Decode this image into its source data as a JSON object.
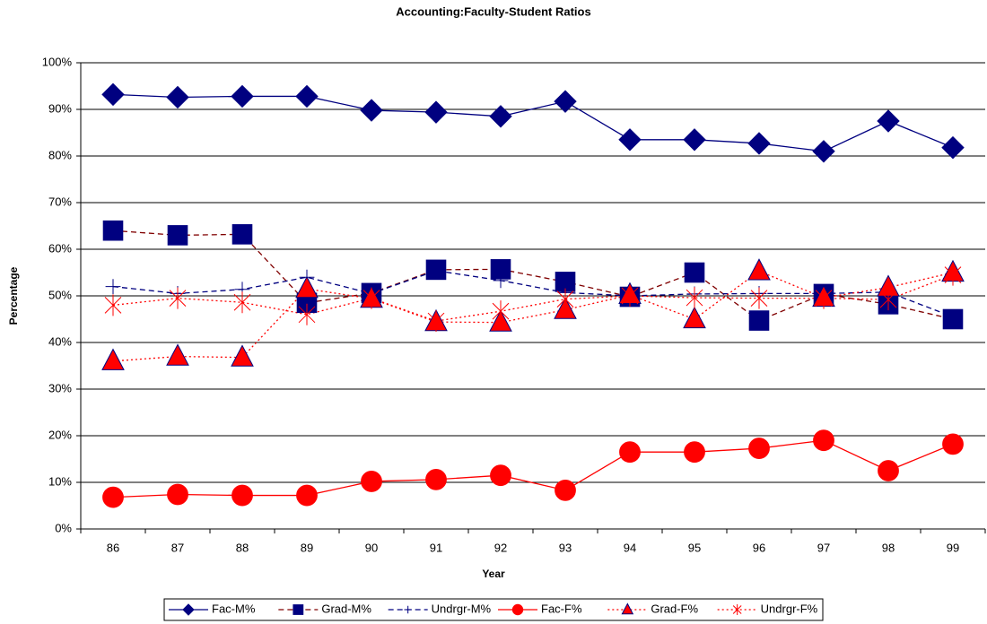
{
  "chart_data": {
    "type": "line",
    "title": "Accounting:Faculty-Student Ratios",
    "x_label": "Year",
    "y_label": "Percentage",
    "categories": [
      "86",
      "87",
      "88",
      "89",
      "90",
      "91",
      "92",
      "93",
      "94",
      "95",
      "96",
      "97",
      "98",
      "99"
    ],
    "ylim": [
      0,
      100
    ],
    "yticks": [
      {
        "value": 0,
        "label": "0%"
      },
      {
        "value": 10,
        "label": "10%"
      },
      {
        "value": 20,
        "label": "20%"
      },
      {
        "value": 30,
        "label": "30%"
      },
      {
        "value": 40,
        "label": "40%"
      },
      {
        "value": 50,
        "label": "50%"
      },
      {
        "value": 60,
        "label": "60%"
      },
      {
        "value": 70,
        "label": "70%"
      },
      {
        "value": 80,
        "label": "80%"
      },
      {
        "value": 90,
        "label": "90%"
      },
      {
        "value": 100,
        "label": "100%"
      }
    ],
    "grid": true,
    "legend": "bottom",
    "series": [
      {
        "name": "Fac-M%",
        "color": "#000080",
        "line_color": "#000080",
        "marker": "diamond",
        "dash": "solid",
        "values": [
          93.2,
          92.6,
          92.8,
          92.8,
          89.8,
          89.4,
          88.5,
          91.7,
          83.5,
          83.5,
          82.7,
          81,
          87.5,
          81.8
        ]
      },
      {
        "name": "Grad-M%",
        "color": "#000080",
        "line_color": "#800000",
        "marker": "square",
        "dash": "dashed",
        "values": [
          64,
          63,
          63.2,
          48.5,
          50.6,
          55.6,
          55.7,
          53,
          49.8,
          55,
          44.7,
          50.4,
          48.2,
          45
        ]
      },
      {
        "name": "Undrgr-M%",
        "color": "#000080",
        "line_color": "#000080",
        "marker": "plus",
        "dash": "dashed",
        "values": [
          52,
          50.5,
          51.4,
          54,
          50.5,
          55.4,
          53.3,
          50.7,
          50,
          50.4,
          50.5,
          50.5,
          50.8,
          45.5
        ]
      },
      {
        "name": "Fac-F%",
        "color": "#ff0000",
        "line_color": "#ff0000",
        "marker": "circle",
        "dash": "solid",
        "values": [
          6.8,
          7.4,
          7.2,
          7.2,
          10.2,
          10.6,
          11.5,
          8.3,
          16.5,
          16.5,
          17.3,
          19,
          12.5,
          18.2
        ]
      },
      {
        "name": "Grad-F%",
        "color": "#ff0000",
        "line_color": "#ff0000",
        "marker": "triangle",
        "dash": "dotted",
        "values": [
          36,
          37,
          36.8,
          51.5,
          49.4,
          44.4,
          44.3,
          47,
          50.2,
          45,
          55.3,
          49.6,
          51.8,
          55
        ]
      },
      {
        "name": "Undrgr-F%",
        "color": "#ff0000",
        "line_color": "#ff0000",
        "marker": "asterisk",
        "dash": "dotted",
        "values": [
          48,
          49.5,
          48.6,
          46,
          49.5,
          44.6,
          46.7,
          49.3,
          50,
          49.6,
          49.5,
          49.5,
          49.2,
          54.5
        ]
      }
    ]
  }
}
